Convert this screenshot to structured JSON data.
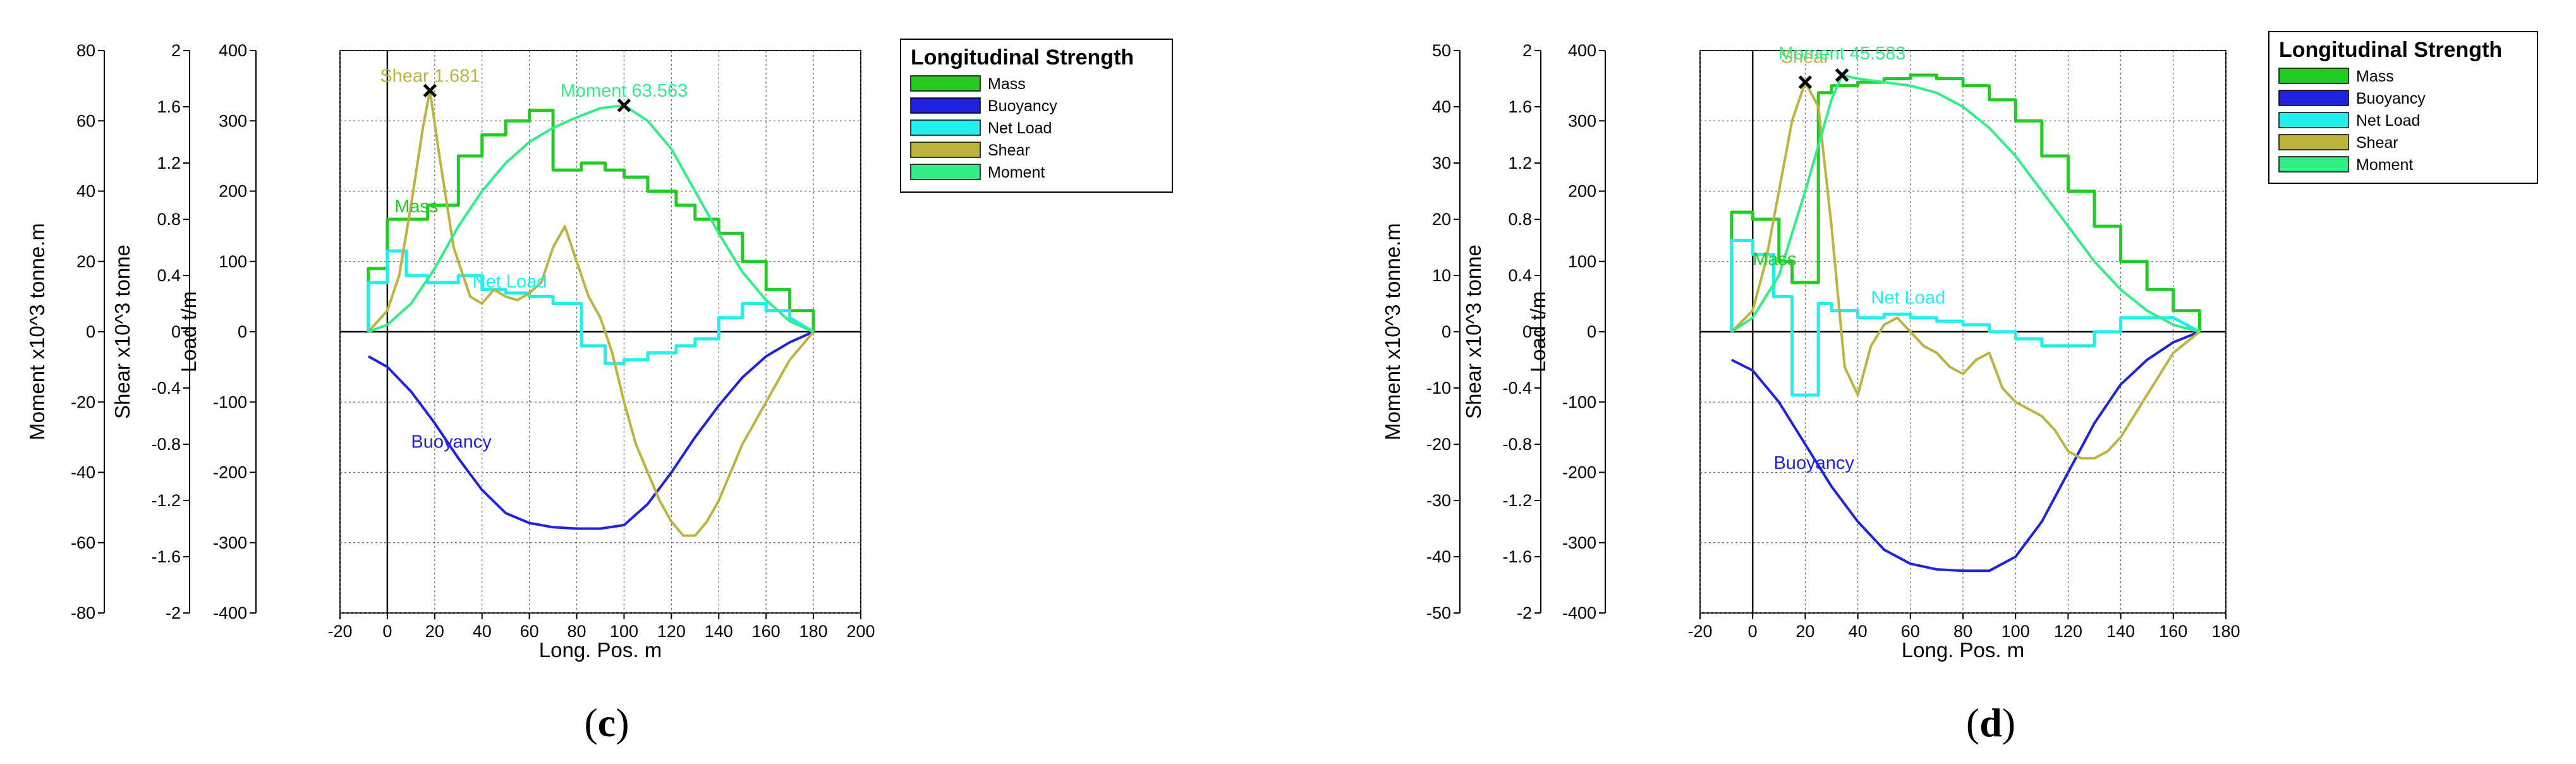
{
  "chart_data": [
    {
      "type": "line",
      "panel_label": "c",
      "xlabel": "Long. Pos. m",
      "xlim": [
        -20,
        200
      ],
      "xticks": [
        -20,
        0,
        20,
        40,
        60,
        80,
        100,
        120,
        140,
        160,
        180,
        200
      ],
      "axes": [
        {
          "label": "Moment  x10^3 tonne.m",
          "ticks": [
            "80",
            "60",
            "40",
            "20",
            "0",
            "-20",
            "-40",
            "-60",
            "-80"
          ]
        },
        {
          "label": "Shear  x10^3 tonne",
          "ticks": [
            "2",
            "1.6",
            "1.2",
            "0.8",
            "0.4",
            "0",
            "-0.4",
            "-0.8",
            "-1.2",
            "-1.6",
            "-2"
          ]
        },
        {
          "label": "Load  t/m",
          "ticks": [
            "400",
            "300",
            "200",
            "100",
            "0",
            "-100",
            "-200",
            "-300",
            "-400"
          ]
        }
      ],
      "ylim": [
        -400,
        400
      ],
      "grid": true,
      "legend": {
        "title": "Longitudinal Strength",
        "placement": "right",
        "entries": [
          "Mass",
          "Buoyancy",
          "Net Load",
          "Shear",
          "Moment"
        ]
      },
      "colors": {
        "Mass": "#22cc22",
        "Buoyancy": "#2222dd",
        "Net Load": "#22eeee",
        "Shear": "#bbb440",
        "Moment": "#33ee88"
      },
      "annotations": [
        {
          "text": "Shear 1.681",
          "x": 18,
          "y": 343
        },
        {
          "text": "Moment 63.563",
          "x": 100,
          "y": 322
        },
        {
          "text": "Mass",
          "x": 3,
          "y": 170
        },
        {
          "text": "Net Load",
          "x": 36,
          "y": 63
        },
        {
          "text": "Buoyancy",
          "x": 10,
          "y": -165
        }
      ],
      "markers": [
        {
          "x": 18,
          "y": 343
        },
        {
          "x": 100,
          "y": 322
        }
      ],
      "series": [
        {
          "name": "Mass",
          "x": [
            -8,
            -8,
            0,
            0,
            17,
            17,
            30,
            30,
            40,
            40,
            50,
            50,
            60,
            60,
            70,
            70,
            82,
            82,
            92,
            92,
            100,
            100,
            110,
            110,
            122,
            122,
            130,
            130,
            140,
            140,
            150,
            150,
            160,
            160,
            170,
            170,
            180,
            180
          ],
          "y": [
            0,
            90,
            90,
            160,
            160,
            180,
            180,
            250,
            250,
            280,
            280,
            300,
            300,
            315,
            315,
            230,
            230,
            240,
            240,
            230,
            230,
            220,
            220,
            200,
            200,
            180,
            180,
            160,
            160,
            140,
            140,
            100,
            100,
            60,
            60,
            30,
            30,
            0
          ]
        },
        {
          "name": "Buoyancy",
          "x": [
            -8,
            0,
            10,
            20,
            30,
            40,
            50,
            60,
            70,
            80,
            90,
            100,
            110,
            120,
            130,
            140,
            150,
            160,
            170,
            180
          ],
          "y": [
            -35,
            -50,
            -85,
            -130,
            -180,
            -225,
            -258,
            -272,
            -278,
            -280,
            -280,
            -275,
            -245,
            -200,
            -150,
            -105,
            -65,
            -35,
            -15,
            0
          ]
        },
        {
          "name": "Net Load",
          "x": [
            -8,
            -8,
            0,
            0,
            8,
            8,
            17,
            17,
            30,
            30,
            40,
            40,
            50,
            50,
            60,
            60,
            70,
            70,
            82,
            82,
            92,
            92,
            100,
            100,
            110,
            110,
            122,
            122,
            130,
            130,
            140,
            140,
            150,
            150,
            160,
            160,
            170,
            170,
            180
          ],
          "y": [
            0,
            70,
            70,
            115,
            115,
            80,
            80,
            70,
            70,
            80,
            80,
            60,
            60,
            55,
            55,
            50,
            50,
            40,
            40,
            -20,
            -20,
            -45,
            -45,
            -40,
            -40,
            -30,
            -30,
            -20,
            -20,
            -10,
            -10,
            20,
            20,
            40,
            40,
            30,
            30,
            20,
            0
          ]
        },
        {
          "name": "Shear",
          "x": [
            -8,
            0,
            5,
            10,
            15,
            18,
            22,
            28,
            35,
            40,
            45,
            50,
            55,
            60,
            65,
            70,
            75,
            80,
            85,
            90,
            95,
            100,
            105,
            110,
            115,
            120,
            125,
            130,
            135,
            140,
            145,
            150,
            155,
            160,
            165,
            170,
            175,
            180
          ],
          "y": [
            0,
            30,
            80,
            180,
            290,
            343,
            250,
            120,
            50,
            40,
            60,
            50,
            45,
            55,
            70,
            120,
            150,
            100,
            50,
            20,
            -30,
            -100,
            -160,
            -200,
            -240,
            -270,
            -290,
            -290,
            -270,
            -240,
            -200,
            -160,
            -130,
            -100,
            -70,
            -40,
            -20,
            0
          ]
        },
        {
          "name": "Moment",
          "x": [
            -8,
            0,
            10,
            20,
            30,
            40,
            50,
            60,
            70,
            80,
            90,
            100,
            110,
            120,
            130,
            140,
            150,
            160,
            170,
            180
          ],
          "y": [
            0,
            10,
            40,
            90,
            150,
            200,
            240,
            270,
            290,
            305,
            318,
            322,
            300,
            260,
            200,
            140,
            85,
            45,
            15,
            0
          ]
        }
      ]
    },
    {
      "type": "line",
      "panel_label": "d",
      "xlabel": "Long. Pos. m",
      "xlim": [
        -20,
        180
      ],
      "xticks": [
        -20,
        0,
        20,
        40,
        60,
        80,
        100,
        120,
        140,
        160,
        180
      ],
      "axes": [
        {
          "label": "Moment  x10^3 tonne.m",
          "ticks": [
            "50",
            "40",
            "30",
            "20",
            "10",
            "0",
            "-10",
            "-20",
            "-30",
            "-40",
            "-50"
          ]
        },
        {
          "label": "Shear  x10^3 tonne",
          "ticks": [
            "2",
            "1.6",
            "1.2",
            "0.8",
            "0.4",
            "0",
            "-0.4",
            "-0.8",
            "-1.2",
            "-1.6",
            "-2"
          ]
        },
        {
          "label": "Load  t/m",
          "ticks": [
            "400",
            "300",
            "200",
            "100",
            "0",
            "-100",
            "-200",
            "-300",
            "-400"
          ]
        }
      ],
      "ylim": [
        -400,
        400
      ],
      "grid": true,
      "legend": {
        "title": "Longitudinal Strength",
        "placement": "right",
        "entries": [
          "Mass",
          "Buoyancy",
          "Net Load",
          "Shear",
          "Moment"
        ]
      },
      "colors": {
        "Mass": "#22cc22",
        "Buoyancy": "#2222dd",
        "Net Load": "#22eeee",
        "Shear": "#bbb440",
        "Moment": "#33ee88"
      },
      "annotations": [
        {
          "text": "Shear",
          "x": 20,
          "y": 370
        },
        {
          "text": "Moment 45.583",
          "x": 34,
          "y": 375
        },
        {
          "text": "Mass",
          "x": 0,
          "y": 95
        },
        {
          "text": "Net Load",
          "x": 45,
          "y": 40
        },
        {
          "text": "Buoyancy",
          "x": 8,
          "y": -195
        }
      ],
      "markers": [
        {
          "x": 20,
          "y": 355
        },
        {
          "x": 34,
          "y": 365
        }
      ],
      "series": [
        {
          "name": "Mass",
          "x": [
            -8,
            -8,
            0,
            0,
            10,
            10,
            15,
            15,
            25,
            25,
            30,
            30,
            40,
            40,
            50,
            50,
            60,
            60,
            70,
            70,
            80,
            80,
            90,
            90,
            100,
            100,
            110,
            110,
            120,
            120,
            130,
            130,
            140,
            140,
            150,
            150,
            160,
            160,
            170,
            170
          ],
          "y": [
            0,
            170,
            170,
            160,
            160,
            100,
            100,
            70,
            70,
            340,
            340,
            350,
            350,
            355,
            355,
            360,
            360,
            365,
            365,
            360,
            360,
            350,
            350,
            330,
            330,
            300,
            300,
            250,
            250,
            200,
            200,
            150,
            150,
            100,
            100,
            60,
            60,
            30,
            30,
            0
          ]
        },
        {
          "name": "Buoyancy",
          "x": [
            -8,
            0,
            10,
            20,
            30,
            40,
            50,
            60,
            70,
            80,
            90,
            100,
            110,
            120,
            130,
            140,
            150,
            160,
            170
          ],
          "y": [
            -40,
            -55,
            -100,
            -160,
            -220,
            -270,
            -310,
            -330,
            -338,
            -340,
            -340,
            -320,
            -270,
            -200,
            -130,
            -75,
            -40,
            -15,
            0
          ]
        },
        {
          "name": "Net Load",
          "x": [
            -8,
            -8,
            0,
            0,
            8,
            8,
            15,
            15,
            25,
            25,
            30,
            30,
            40,
            40,
            50,
            50,
            60,
            60,
            70,
            70,
            80,
            80,
            90,
            90,
            100,
            100,
            110,
            110,
            120,
            120,
            130,
            130,
            140,
            140,
            150,
            150,
            160,
            160,
            170
          ],
          "y": [
            0,
            130,
            130,
            110,
            110,
            50,
            50,
            -90,
            -90,
            40,
            40,
            30,
            30,
            20,
            20,
            25,
            25,
            20,
            20,
            15,
            15,
            10,
            10,
            0,
            0,
            -10,
            -10,
            -20,
            -20,
            -20,
            -20,
            0,
            0,
            20,
            20,
            20,
            20,
            20,
            0
          ]
        },
        {
          "name": "Shear",
          "x": [
            -8,
            0,
            5,
            10,
            15,
            20,
            25,
            30,
            35,
            40,
            45,
            50,
            55,
            60,
            65,
            70,
            75,
            80,
            85,
            90,
            95,
            100,
            105,
            110,
            115,
            120,
            125,
            130,
            135,
            140,
            145,
            150,
            155,
            160,
            165,
            170
          ],
          "y": [
            0,
            30,
            100,
            200,
            300,
            355,
            320,
            150,
            -50,
            -90,
            -20,
            10,
            20,
            0,
            -20,
            -30,
            -50,
            -60,
            -40,
            -30,
            -80,
            -100,
            -110,
            -120,
            -140,
            -170,
            -180,
            -180,
            -170,
            -150,
            -120,
            -90,
            -60,
            -30,
            -15,
            0
          ]
        },
        {
          "name": "Moment",
          "x": [
            -8,
            0,
            10,
            20,
            30,
            34,
            40,
            50,
            60,
            70,
            80,
            90,
            100,
            110,
            120,
            130,
            140,
            150,
            160,
            170
          ],
          "y": [
            0,
            20,
            80,
            200,
            330,
            365,
            360,
            355,
            350,
            340,
            320,
            290,
            250,
            200,
            150,
            100,
            60,
            30,
            10,
            0
          ]
        }
      ]
    }
  ]
}
